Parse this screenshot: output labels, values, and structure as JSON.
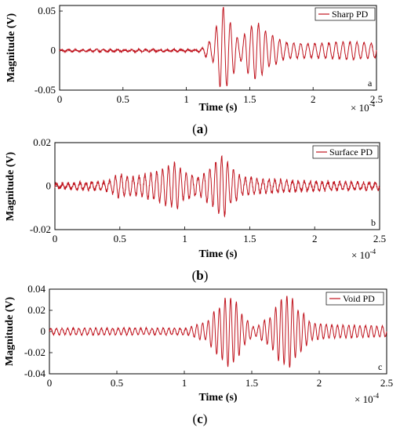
{
  "figure": {
    "panels": [
      {
        "letter": "a",
        "caption_pre": "(",
        "caption_letter": "a",
        "caption_post": ")"
      },
      {
        "letter": "b",
        "caption_pre": "(",
        "caption_letter": "b",
        "caption_post": ")"
      },
      {
        "letter": "c",
        "caption_pre": "(",
        "caption_letter": "c",
        "caption_post": ")"
      }
    ]
  },
  "chart_data": [
    {
      "type": "line",
      "series": [
        {
          "name": "Sharp PD",
          "color": "#c0141e"
        }
      ],
      "xlabel": "Time (s)",
      "ylabel": "Magnitude (V)",
      "x_multiplier_base": "× 10",
      "x_multiplier_exp": "-4",
      "xlim": [
        0,
        2.5
      ],
      "ylim": [
        -0.05,
        0.057
      ],
      "xticks": [
        0,
        0.5,
        1,
        1.5,
        2,
        2.5
      ],
      "xtick_labels": [
        "0",
        "0.5",
        "1",
        "1.5",
        "2",
        "2.5"
      ],
      "yticks": [
        -0.05,
        0,
        0.05
      ],
      "ytick_labels": [
        "-0.05",
        "0",
        "0.05"
      ],
      "panel_letter": "a",
      "signal": {
        "noise": 0.0012,
        "x": [
          0,
          1.1,
          1.2,
          1.25,
          1.28,
          1.32,
          1.36,
          1.42,
          1.5,
          1.55,
          1.6,
          1.65,
          1.8,
          2.0,
          2.3,
          2.5
        ],
        "amp": [
          0.0012,
          0.0012,
          0.012,
          0.035,
          0.057,
          0.045,
          0.032,
          0.012,
          0.03,
          0.036,
          0.03,
          0.02,
          0.01,
          0.009,
          0.011,
          0.009
        ],
        "freq_cycles_per_unit": 18
      }
    },
    {
      "type": "line",
      "series": [
        {
          "name": "Surface PD",
          "color": "#c0141e"
        }
      ],
      "xlabel": "Time (s)",
      "ylabel": "Magnitude (V)",
      "x_multiplier_base": "× 10",
      "x_multiplier_exp": "-4",
      "xlim": [
        0,
        2.5
      ],
      "ylim": [
        -0.02,
        0.02
      ],
      "xticks": [
        0,
        0.5,
        1,
        1.5,
        2,
        2.5
      ],
      "xtick_labels": [
        "0",
        "0.5",
        "1",
        "1.5",
        "2",
        "2.5"
      ],
      "yticks": [
        -0.02,
        0,
        0.02
      ],
      "ytick_labels": [
        "-0.02",
        "0",
        "0.02"
      ],
      "panel_letter": "b",
      "signal": {
        "noise": 0.0009,
        "x": [
          0,
          0.4,
          0.5,
          0.6,
          0.75,
          0.88,
          0.93,
          1.0,
          1.1,
          1.2,
          1.26,
          1.3,
          1.36,
          1.45,
          1.6,
          2.0,
          2.5
        ],
        "amp": [
          0.001,
          0.002,
          0.005,
          0.004,
          0.006,
          0.009,
          0.011,
          0.006,
          0.004,
          0.008,
          0.013,
          0.014,
          0.008,
          0.004,
          0.003,
          0.002,
          0.0015
        ],
        "freq_cycles_per_unit": 22
      }
    },
    {
      "type": "line",
      "series": [
        {
          "name": "Void PD",
          "color": "#c0141e"
        }
      ],
      "xlabel": "Time (s)",
      "ylabel": "Magnitude (V)",
      "x_multiplier_base": "× 10",
      "x_multiplier_exp": "-4",
      "xlim": [
        0,
        2.5
      ],
      "ylim": [
        -0.04,
        0.04
      ],
      "xticks": [
        0,
        0.5,
        1,
        1.5,
        2,
        2.5
      ],
      "xtick_labels": [
        "0",
        "0.5",
        "1",
        "1.5",
        "2",
        "2.5"
      ],
      "yticks": [
        -0.04,
        -0.02,
        0,
        0.02,
        0.04
      ],
      "ytick_labels": [
        "-0.04",
        "-0.02",
        "0",
        "0.02",
        "0.04"
      ],
      "panel_letter": "c",
      "signal": {
        "noise": 0.0007,
        "x": [
          0,
          1.0,
          1.15,
          1.25,
          1.32,
          1.38,
          1.45,
          1.52,
          1.62,
          1.72,
          1.78,
          1.85,
          1.95,
          2.1,
          2.5
        ],
        "amp": [
          0.003,
          0.003,
          0.008,
          0.022,
          0.033,
          0.028,
          0.012,
          0.004,
          0.012,
          0.03,
          0.034,
          0.02,
          0.008,
          0.006,
          0.005
        ],
        "freq_cycles_per_unit": 24
      }
    }
  ]
}
